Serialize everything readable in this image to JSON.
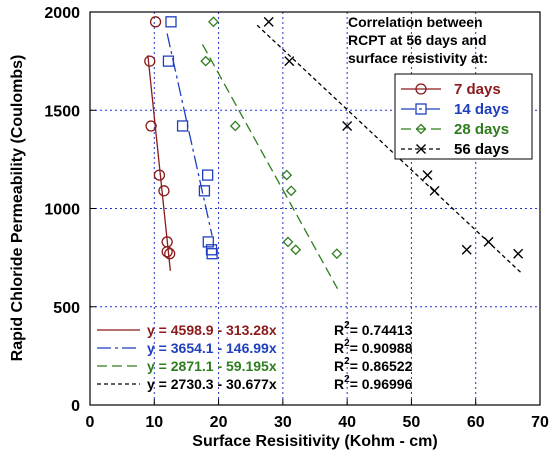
{
  "chart_data": {
    "type": "scatter",
    "xlabel": "Surface Resisitivity (Kohm - cm)",
    "ylabel": "Rapid Chloride Permeability (Coulombs)",
    "xlim": [
      0,
      70
    ],
    "ylim": [
      0,
      2000
    ],
    "xticks": [
      0,
      10,
      20,
      30,
      40,
      50,
      60,
      70
    ],
    "yticks": [
      0,
      500,
      1000,
      1500,
      2000
    ],
    "grid": true,
    "annotation": [
      "Correlation between",
      "RCPT at 56 days and",
      "surface resistivity at:"
    ],
    "legend_position": "upper-right",
    "series": [
      {
        "name": "7 days",
        "color": "#8B1A1A",
        "marker": "circle",
        "points": [
          [
            10.2,
            1950
          ],
          [
            9.3,
            1750
          ],
          [
            9.5,
            1420
          ],
          [
            10.8,
            1170
          ],
          [
            11.5,
            1090
          ],
          [
            12.0,
            830
          ],
          [
            12.0,
            780
          ],
          [
            12.4,
            770
          ]
        ],
        "fit_x": [
          9.0,
          12.5
        ],
        "equation": "y = 4598.9 - 313.28x",
        "r2": "R²= 0.74413",
        "r2_prefix": "R",
        "r2_sup": "2",
        "r2_value": "= 0.74413"
      },
      {
        "name": "14 days",
        "color": "#1F3FBF",
        "marker": "square",
        "points": [
          [
            12.6,
            1950
          ],
          [
            12.2,
            1750
          ],
          [
            14.4,
            1420
          ],
          [
            18.3,
            1170
          ],
          [
            17.8,
            1090
          ],
          [
            18.4,
            830
          ],
          [
            18.9,
            790
          ],
          [
            19.0,
            770
          ]
        ],
        "fit_x": [
          12.0,
          19.0
        ],
        "equation": "y = 3654.1 - 146.99x",
        "r2": "R²= 0.90988",
        "r2_prefix": "R",
        "r2_sup": "2",
        "r2_value": "= 0.90988"
      },
      {
        "name": "28 days",
        "color": "#2E7D1E",
        "marker": "diamond",
        "points": [
          [
            19.2,
            1950
          ],
          [
            18.0,
            1750
          ],
          [
            22.6,
            1420
          ],
          [
            30.6,
            1170
          ],
          [
            31.3,
            1090
          ],
          [
            30.8,
            830
          ],
          [
            32.0,
            790
          ],
          [
            38.4,
            770
          ]
        ],
        "fit_x": [
          17.5,
          38.5
        ],
        "equation": "y = 2871.1 - 59.195x",
        "r2": "R²= 0.86522",
        "r2_prefix": "R",
        "r2_sup": "2",
        "r2_value": "= 0.86522"
      },
      {
        "name": "56 days",
        "color": "#000000",
        "marker": "x",
        "points": [
          [
            27.8,
            1950
          ],
          [
            31.0,
            1750
          ],
          [
            40.0,
            1420
          ],
          [
            52.5,
            1170
          ],
          [
            53.6,
            1090
          ],
          [
            62.0,
            830
          ],
          [
            58.6,
            790
          ],
          [
            66.6,
            770
          ]
        ],
        "fit_x": [
          26.0,
          67.0
        ],
        "equation": "y = 2730.3 - 30.677x",
        "r2": "R²= 0.96996",
        "r2_prefix": "R",
        "r2_sup": "2",
        "r2_value": "= 0.96996"
      }
    ]
  }
}
